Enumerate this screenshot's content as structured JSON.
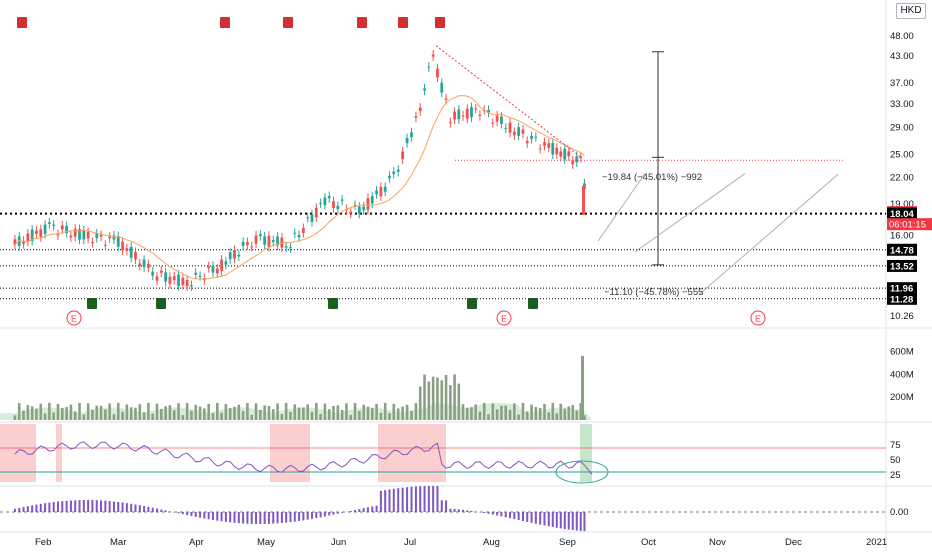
{
  "currency": "HKD",
  "last_price": "18.18",
  "countdown": "06:01:15",
  "price_axis_ticks": [
    "48.00",
    "43.00",
    "37.00",
    "33.00",
    "29.00",
    "25.00",
    "22.00",
    "19.00",
    "16.00",
    "10.26"
  ],
  "price_tags": [
    {
      "label": "18.18",
      "value": 18.18,
      "color": "#f23645",
      "level": "last"
    },
    {
      "label": "18.04",
      "value": 18.04,
      "color": "#000000"
    },
    {
      "label": "14.78",
      "value": 14.78,
      "color": "#000000"
    },
    {
      "label": "13.52",
      "value": 13.52,
      "color": "#000000"
    },
    {
      "label": "11.96",
      "value": 11.96,
      "color": "#000000"
    },
    {
      "label": "11.28",
      "value": 11.28,
      "color": "#000000"
    }
  ],
  "measure_labels": [
    {
      "text": "−19.84 (−45.01%) −992",
      "price": 22.1
    },
    {
      "text": "−11.10 (−45.78%) −555",
      "price": 11.7
    }
  ],
  "earnings_marker": "E",
  "earnings_month_positions": [
    "Feb",
    "Aug",
    "Nov"
  ],
  "volume_axis_ticks": [
    "600M",
    "400M",
    "200M"
  ],
  "rsi_axis_ticks": [
    "75",
    "50",
    "25"
  ],
  "macd_axis_ticks": [
    "0.00"
  ],
  "x_axis_labels": [
    "Feb",
    "Mar",
    "Apr",
    "May",
    "Jun",
    "Jul",
    "Aug",
    "Sep",
    "Oct",
    "Nov",
    "Dec",
    "2021"
  ],
  "colors": {
    "up": "#26a69a",
    "down": "#ef5350",
    "ma": "#f7a35c",
    "rsi": "#7e57c2",
    "volume": "#9fb59a",
    "rsi_band": "#fbcfd0",
    "rsi_low": "#a9e7df",
    "upper_line": "#f23645"
  },
  "chart_data": {
    "type": "candlestick",
    "price_scale": "log",
    "ylim": [
      10.26,
      52
    ],
    "x_range": [
      "2020-01-20",
      "2021-01-05"
    ],
    "horizontal_levels": [
      18.04,
      14.78,
      13.52,
      11.96,
      11.28
    ],
    "trendline": {
      "from": [
        "2020-07-10",
        45.5
      ],
      "to": [
        "2020-09-07",
        24.5
      ]
    },
    "resistance_line": {
      "price": 24.2,
      "from": "2020-07-20",
      "to": "2020-12-18"
    },
    "measure_vertical": {
      "date": "2020-10-02",
      "from": 44.0,
      "to": 13.6,
      "mid": 24.6
    },
    "candles_monthly_closes": [
      {
        "date": "2020-01-21",
        "c": 15.2
      },
      {
        "date": "2020-02-04",
        "c": 16.8
      },
      {
        "date": "2020-02-18",
        "c": 15.9
      },
      {
        "date": "2020-03-03",
        "c": 15.5
      },
      {
        "date": "2020-03-17",
        "c": 13.0
      },
      {
        "date": "2020-03-31",
        "c": 12.3
      },
      {
        "date": "2020-04-14",
        "c": 13.6
      },
      {
        "date": "2020-04-28",
        "c": 15.8
      },
      {
        "date": "2020-05-12",
        "c": 15.2
      },
      {
        "date": "2020-05-26",
        "c": 19.5
      },
      {
        "date": "2020-06-09",
        "c": 18.2
      },
      {
        "date": "2020-06-23",
        "c": 22.0
      },
      {
        "date": "2020-07-02",
        "c": 30.0
      },
      {
        "date": "2020-07-09",
        "c": 43.0
      },
      {
        "date": "2020-07-16",
        "c": 30.5
      },
      {
        "date": "2020-07-28",
        "c": 32.0
      },
      {
        "date": "2020-08-11",
        "c": 28.5
      },
      {
        "date": "2020-08-25",
        "c": 26.0
      },
      {
        "date": "2020-09-07",
        "c": 24.0
      },
      {
        "date": "2020-09-10",
        "c": 18.18
      }
    ]
  }
}
